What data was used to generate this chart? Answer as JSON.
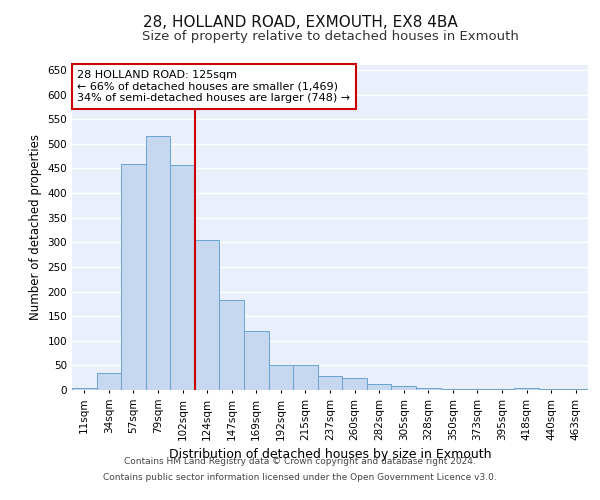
{
  "title1": "28, HOLLAND ROAD, EXMOUTH, EX8 4BA",
  "title2": "Size of property relative to detached houses in Exmouth",
  "xlabel": "Distribution of detached houses by size in Exmouth",
  "ylabel": "Number of detached properties",
  "categories": [
    "11sqm",
    "34sqm",
    "57sqm",
    "79sqm",
    "102sqm",
    "124sqm",
    "147sqm",
    "169sqm",
    "192sqm",
    "215sqm",
    "237sqm",
    "260sqm",
    "282sqm",
    "305sqm",
    "328sqm",
    "350sqm",
    "373sqm",
    "395sqm",
    "418sqm",
    "440sqm",
    "463sqm"
  ],
  "values": [
    5,
    35,
    458,
    515,
    457,
    305,
    182,
    120,
    50,
    50,
    28,
    25,
    13,
    8,
    5,
    3,
    3,
    2,
    5,
    3,
    2
  ],
  "bar_color": "#c5d8f0",
  "bar_edge_color": "#6ba3d0",
  "annotation_text_line1": "28 HOLLAND ROAD: 125sqm",
  "annotation_text_line2": "← 66% of detached houses are smaller (1,469)",
  "annotation_text_line3": "34% of semi-detached houses are larger (748) →",
  "annotation_box_color": "#ffffff",
  "annotation_box_edge_color": "#cc0000",
  "vline_color": "#cc0000",
  "vline_x": 4.5,
  "ylim": [
    0,
    660
  ],
  "yticks": [
    0,
    50,
    100,
    150,
    200,
    250,
    300,
    350,
    400,
    450,
    500,
    550,
    600,
    650
  ],
  "footer1": "Contains HM Land Registry data © Crown copyright and database right 2024.",
  "footer2": "Contains public sector information licensed under the Open Government Licence v3.0.",
  "bg_color": "#eaf0fb",
  "grid_color": "#ffffff",
  "title1_fontsize": 11,
  "title2_fontsize": 9.5,
  "tick_fontsize": 7.5,
  "ylabel_fontsize": 8.5,
  "xlabel_fontsize": 9,
  "footer_fontsize": 6.5
}
